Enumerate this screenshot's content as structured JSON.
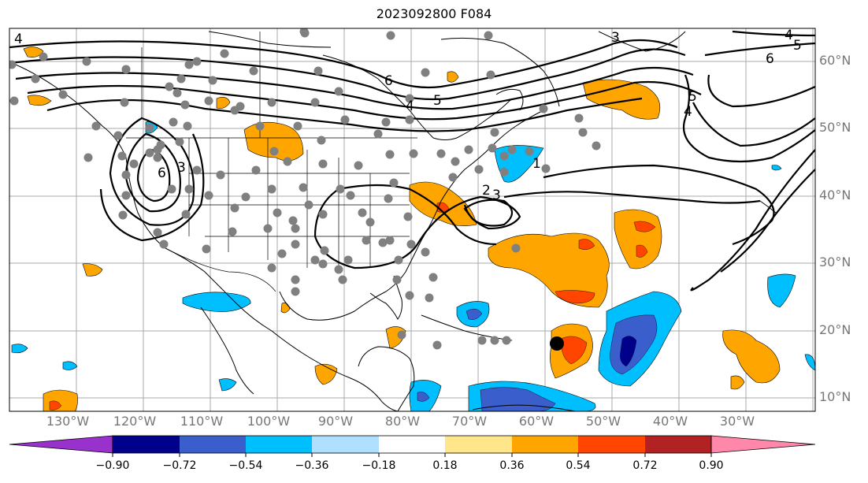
{
  "title": "2023092800 F084",
  "lat_labels": [
    "60°N",
    "50°N",
    "40°N",
    "30°N",
    "20°N",
    "10°N"
  ],
  "lon_labels": [
    "130°W",
    "120°W",
    "110°W",
    "100°W",
    "90°W",
    "80°W",
    "70°W",
    "60°W",
    "50°W",
    "40°W",
    "30°W"
  ],
  "contour_labels": [
    "6",
    "5",
    "4",
    "3",
    "2",
    "1"
  ],
  "colorbar": {
    "ticks": [
      "−0.90",
      "−0.72",
      "−0.54",
      "−0.36",
      "−0.18",
      "0.18",
      "0.36",
      "0.54",
      "0.72",
      "0.90"
    ],
    "colors": [
      "#9932cc",
      "#00008b",
      "#3a5fcd",
      "#00bfff",
      "#b0e0ff",
      "#ffffff",
      "#ffe68a",
      "#ffa500",
      "#ff4500",
      "#b22222",
      "#ff88aa"
    ]
  },
  "colors": {
    "orange": "#ffa500",
    "red_orange": "#ff4500",
    "sky": "#00bfff",
    "royal": "#3a5fcd",
    "navy": "#00008b",
    "station_dot": "#808080",
    "grid": "#aaaaaa"
  }
}
